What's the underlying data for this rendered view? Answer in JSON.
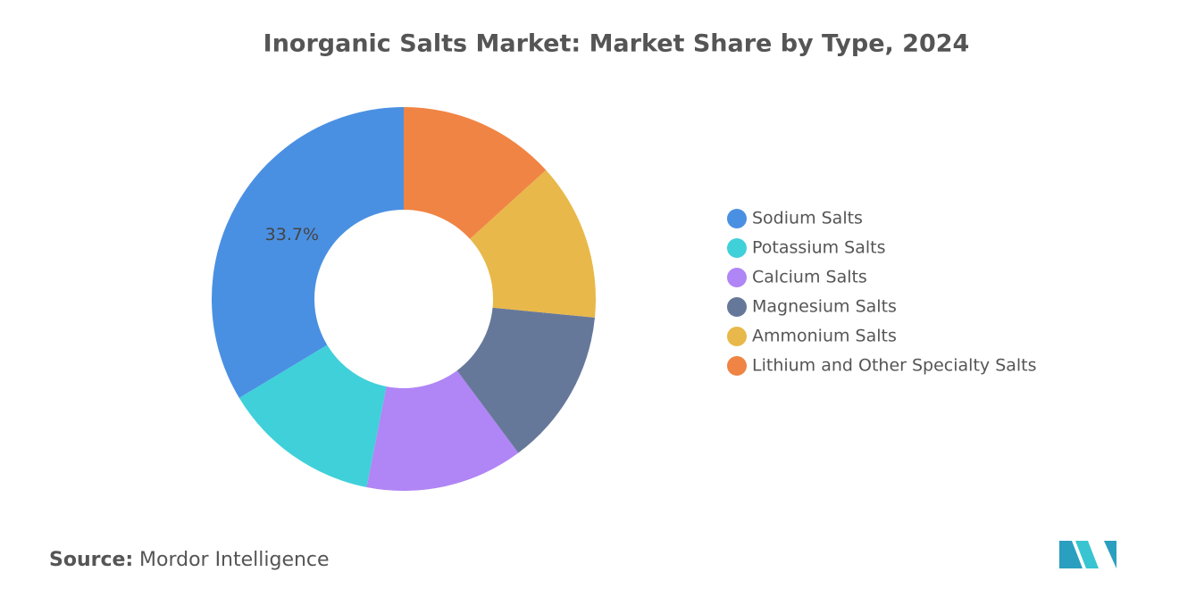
{
  "chart_data": {
    "type": "donut",
    "title": "Inorganic Salts Market: Market Share by Type, 2024",
    "categories": [
      "Sodium Salts",
      "Potassium Salts",
      "Calcium Salts",
      "Magnesium Salts",
      "Ammonium Salts",
      "Lithium and Other Specialty Salts"
    ],
    "values": [
      33.7,
      13.3,
      13.3,
      13.3,
      13.3,
      13.3
    ],
    "value_labels": [
      "33.7%",
      null,
      null,
      null,
      null,
      null
    ],
    "colors": [
      "#4a90e2",
      "#40d0da",
      "#b085f5",
      "#66789a",
      "#e8b84a",
      "#f08444"
    ],
    "legend": "right"
  },
  "source": {
    "label": "Source:",
    "text": "Mordor Intelligence"
  }
}
